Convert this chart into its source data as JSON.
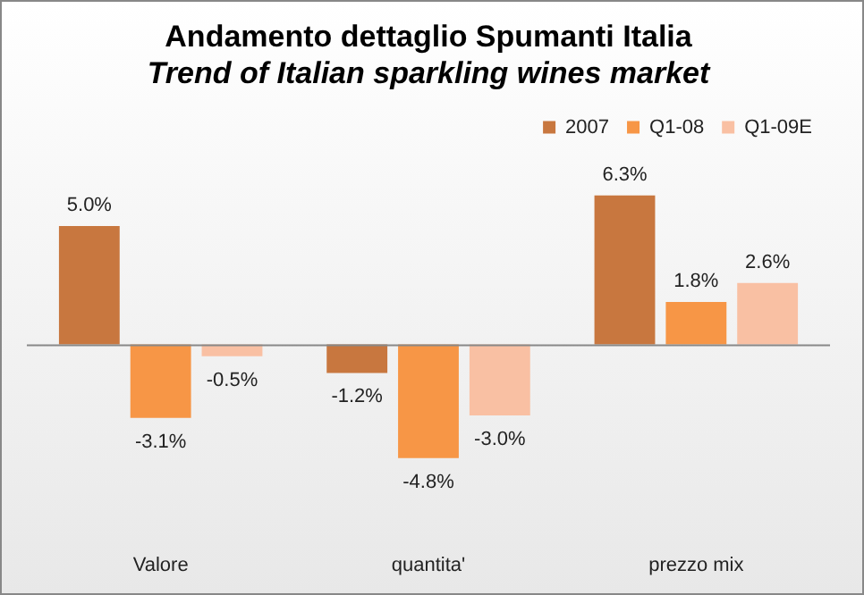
{
  "chart_data": {
    "type": "bar",
    "title": "Andamento dettaglio Spumanti Italia",
    "subtitle": "Trend of Italian sparkling wines market",
    "categories": [
      "Valore",
      "quantita'",
      "prezzo mix"
    ],
    "series": [
      {
        "name": "2007",
        "color": "#c8773f",
        "values": [
          5.0,
          -1.2,
          6.3
        ],
        "value_labels": [
          "5.0%",
          "-1.2%",
          "6.3%"
        ]
      },
      {
        "name": "Q1-08",
        "color": "#f79646",
        "values": [
          -3.1,
          -4.8,
          1.8
        ],
        "value_labels": [
          "-3.1%",
          "-4.8%",
          "1.8%"
        ]
      },
      {
        "name": "Q1-09E",
        "color": "#f9c0a3",
        "values": [
          -0.5,
          -3.0,
          2.6
        ],
        "value_labels": [
          "-0.5%",
          "-3.0%",
          "2.6%"
        ]
      }
    ],
    "legend": "top right"
  }
}
